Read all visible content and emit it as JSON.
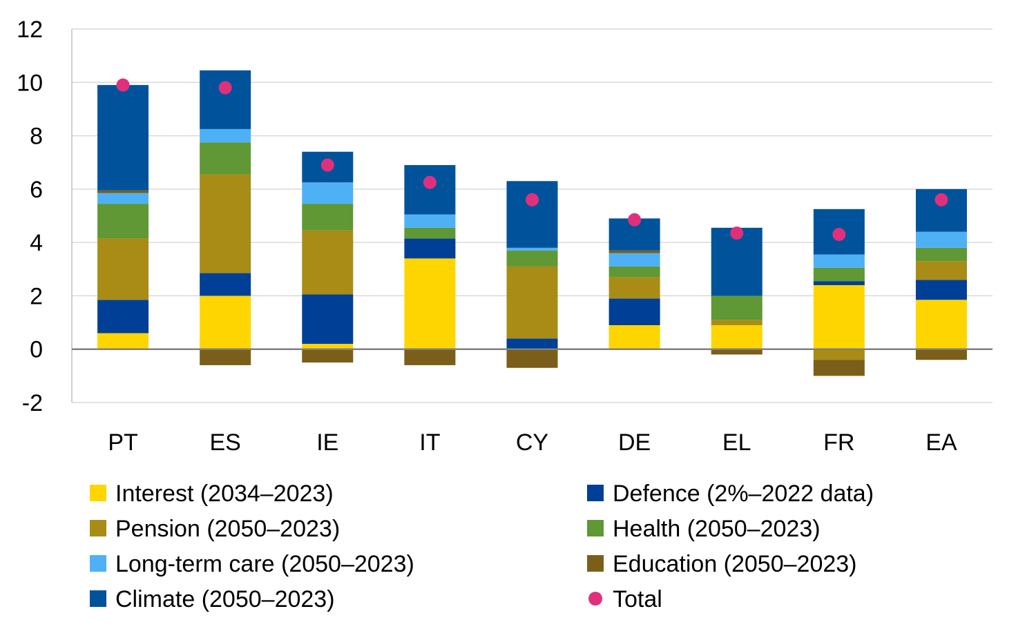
{
  "chart_data": {
    "type": "bar",
    "stacked": true,
    "categories": [
      "PT",
      "ES",
      "IE",
      "IT",
      "CY",
      "DE",
      "EL",
      "FR",
      "EA"
    ],
    "ylim": [
      -2,
      12
    ],
    "yticks": [
      "12",
      "10",
      "8",
      "6",
      "4",
      "2",
      "0",
      "-2"
    ],
    "ytick_values": [
      12,
      10,
      8,
      6,
      4,
      2,
      0,
      -2
    ],
    "grid": "horizontal",
    "legend_position": "bottom",
    "series": [
      {
        "name": "Interest (2034–2023)",
        "color": "#FFD500",
        "values": [
          0.6,
          2.0,
          0.2,
          3.4,
          0.0,
          0.9,
          0.9,
          2.4,
          1.85
        ]
      },
      {
        "name": "Defence (2%–2022 data)",
        "color": "#003F96",
        "values": [
          1.25,
          0.85,
          1.85,
          0.75,
          0.4,
          1.0,
          0.0,
          0.15,
          0.75
        ]
      },
      {
        "name": "Pension (2050–2023)",
        "color": "#A88C15",
        "values": [
          2.3,
          3.7,
          2.4,
          0.0,
          2.7,
          0.8,
          0.2,
          -0.4,
          0.7
        ]
      },
      {
        "name": "Health (2050–2023)",
        "color": "#5F9834",
        "values": [
          1.3,
          1.2,
          1.0,
          0.4,
          0.6,
          0.4,
          0.9,
          0.5,
          0.5
        ]
      },
      {
        "name": "Long-term care (2050–2023)",
        "color": "#4EB1F6",
        "values": [
          0.4,
          0.5,
          0.8,
          0.5,
          0.1,
          0.5,
          0.0,
          0.5,
          0.6
        ]
      },
      {
        "name": "Education (2050–2023)",
        "color": "#7A5E1A",
        "values": [
          0.1,
          -0.6,
          -0.5,
          -0.6,
          -0.7,
          0.1,
          -0.2,
          -0.6,
          -0.4
        ]
      },
      {
        "name": "Climate (2050–2023)",
        "color": "#00539B",
        "values": [
          3.95,
          2.2,
          1.15,
          1.85,
          2.5,
          1.2,
          2.55,
          1.7,
          1.6
        ]
      }
    ],
    "total": {
      "name": "Total",
      "color": "#E0307C",
      "values": [
        9.9,
        9.8,
        6.9,
        6.25,
        5.6,
        4.85,
        4.35,
        4.3,
        5.6
      ]
    },
    "legend": [
      {
        "name": "Interest (2034–2023)",
        "color": "#FFD500",
        "marker": "square"
      },
      {
        "name": "Defence (2%–2022 data)",
        "color": "#003F96",
        "marker": "square"
      },
      {
        "name": "Pension (2050–2023)",
        "color": "#A88C15",
        "marker": "square"
      },
      {
        "name": "Health (2050–2023)",
        "color": "#5F9834",
        "marker": "square"
      },
      {
        "name": "Long-term care (2050–2023)",
        "color": "#4EB1F6",
        "marker": "square"
      },
      {
        "name": "Education (2050–2023)",
        "color": "#7A5E1A",
        "marker": "square"
      },
      {
        "name": "Climate (2050–2023)",
        "color": "#00539B",
        "marker": "square"
      },
      {
        "name": "Total",
        "color": "#E0307C",
        "marker": "circle"
      }
    ]
  }
}
